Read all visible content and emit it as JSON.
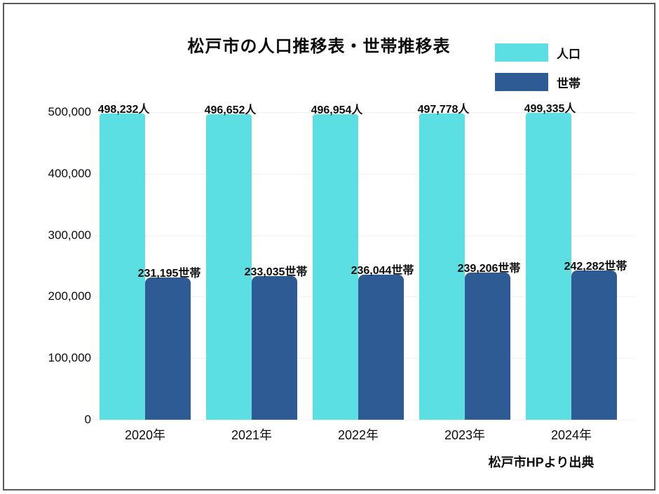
{
  "title": "松戸市の人口推移表・世帯推移表",
  "source_note": "松戸市HPより出典",
  "chart_data": {
    "type": "bar",
    "title": "松戸市の人口推移表・世帯推移表",
    "categories": [
      "2020年",
      "2021年",
      "2022年",
      "2023年",
      "2024年"
    ],
    "series": [
      {
        "name": "人口",
        "color": "#5CDFE2",
        "values": [
          498232,
          496652,
          496954,
          497778,
          499335
        ],
        "labels": [
          "498,232人",
          "496,652人",
          "496,954人",
          "497,778人",
          "499,335人"
        ]
      },
      {
        "name": "世帯",
        "color": "#2E5B94",
        "values": [
          231195,
          233035,
          236044,
          239206,
          242282
        ],
        "labels": [
          "231,195世帯",
          "233,035世帯",
          "236,044世帯",
          "239,206世帯",
          "242,282世帯"
        ]
      }
    ],
    "xlabel": "",
    "ylabel": "",
    "ylim": [
      0,
      500000
    ],
    "yticks": [
      0,
      100000,
      200000,
      300000,
      400000,
      500000
    ],
    "ytick_labels": [
      "0",
      "100,000",
      "200,000",
      "300,000",
      "400,000",
      "500,000"
    ],
    "grid": true,
    "legend_position": "top-right",
    "gridline_color": "#efefef"
  }
}
